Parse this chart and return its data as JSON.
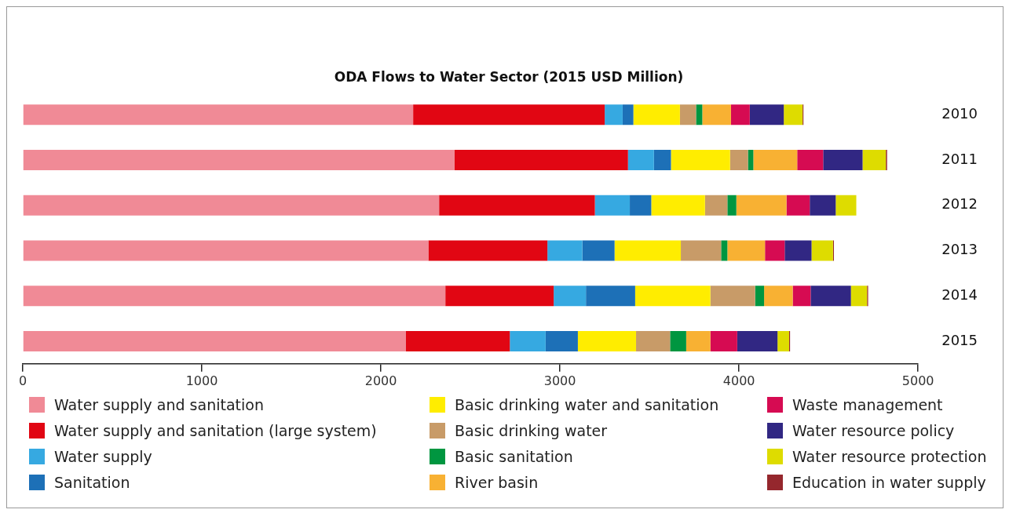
{
  "chart_data": {
    "type": "bar",
    "orientation": "horizontal",
    "stacked": true,
    "title": "ODA Flows to Water Sector (2015 USD Million)",
    "categories": [
      "2010",
      "2011",
      "2012",
      "2013",
      "2014",
      "2015"
    ],
    "xlim": [
      0,
      5000
    ],
    "xticks": [
      0,
      1000,
      2000,
      3000,
      4000,
      5000
    ],
    "grid": false,
    "legend": "bottom",
    "series": [
      {
        "name": "Water supply and sanitation",
        "color": "#f08a96",
        "values": [
          2180,
          2410,
          2325,
          2265,
          2360,
          2140
        ]
      },
      {
        "name": "Water supply and sanitation (large system)",
        "color": "#e10613",
        "values": [
          1070,
          970,
          870,
          665,
          605,
          580
        ]
      },
      {
        "name": "Water supply",
        "color": "#36a9e1",
        "values": [
          100,
          145,
          195,
          195,
          180,
          200
        ]
      },
      {
        "name": "Sanitation",
        "color": "#1d70b7",
        "values": [
          60,
          95,
          120,
          180,
          275,
          180
        ]
      },
      {
        "name": "Basic drinking water and sanitation",
        "color": "#ffed00",
        "values": [
          260,
          330,
          300,
          370,
          420,
          325
        ]
      },
      {
        "name": "Basic drinking water",
        "color": "#c89b68",
        "values": [
          90,
          100,
          125,
          225,
          250,
          190
        ]
      },
      {
        "name": "Basic sanitation",
        "color": "#009640",
        "values": [
          35,
          30,
          50,
          35,
          50,
          90
        ]
      },
      {
        "name": "River basin",
        "color": "#f8b133",
        "values": [
          160,
          245,
          280,
          210,
          160,
          135
        ]
      },
      {
        "name": "Waste management",
        "color": "#d60b52",
        "values": [
          105,
          145,
          130,
          110,
          100,
          150
        ]
      },
      {
        "name": "Water resource policy",
        "color": "#312783",
        "values": [
          190,
          220,
          145,
          150,
          225,
          225
        ]
      },
      {
        "name": "Water resource protection",
        "color": "#dedc00",
        "values": [
          105,
          130,
          115,
          120,
          90,
          65
        ]
      },
      {
        "name": "Education in water supply",
        "color": "#95272d",
        "values": [
          5,
          7,
          0,
          5,
          6,
          5
        ]
      }
    ]
  }
}
